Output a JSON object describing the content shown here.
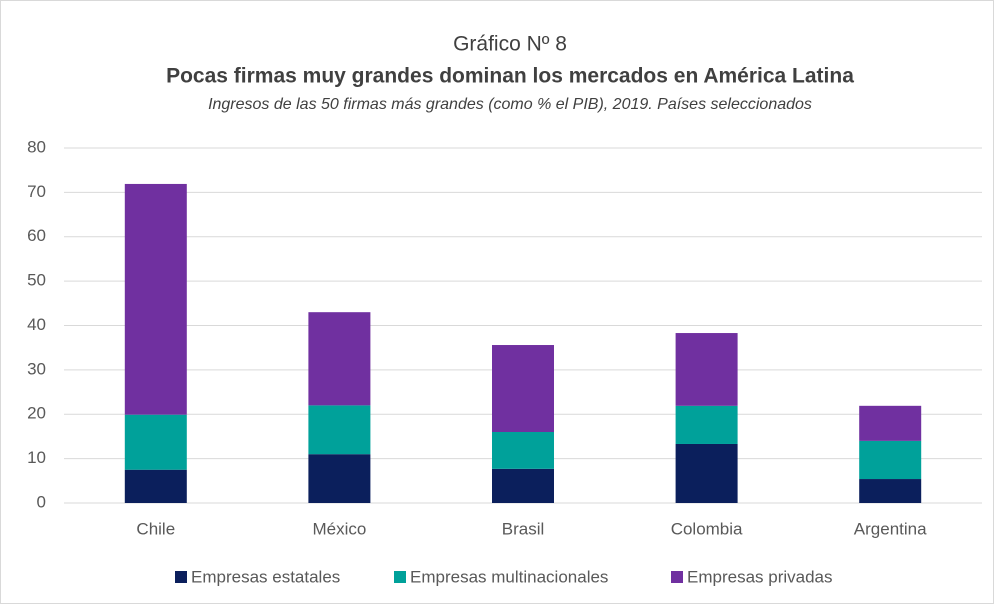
{
  "chart_data": {
    "type": "bar",
    "stacked": true,
    "title": "Gráfico Nº 8",
    "subtitle": "Pocas firmas muy grandes dominan los mercados en América Latina",
    "note": "Ingresos de las 50 firmas más grandes (como % el PIB), 2019. Países seleccionados",
    "categories": [
      "Chile",
      "México",
      "Brasil",
      "Colombia",
      "Argentina"
    ],
    "series": [
      {
        "name": "Empresas estatales",
        "color": "#0b1f5c",
        "values": [
          7.5,
          11,
          7.7,
          13.3,
          5.4
        ]
      },
      {
        "name": "Empresas multinacionales",
        "color": "#00a19a",
        "values": [
          12.4,
          11,
          8.3,
          8.6,
          8.6
        ]
      },
      {
        "name": "Empresas privadas",
        "color": "#7030a0",
        "values": [
          52,
          21,
          19.6,
          16.4,
          7.9
        ]
      }
    ],
    "ylim": [
      0,
      80
    ],
    "yticks": [
      0,
      10,
      20,
      30,
      40,
      50,
      60,
      70,
      80
    ],
    "grid": true,
    "legend": "bottom"
  }
}
